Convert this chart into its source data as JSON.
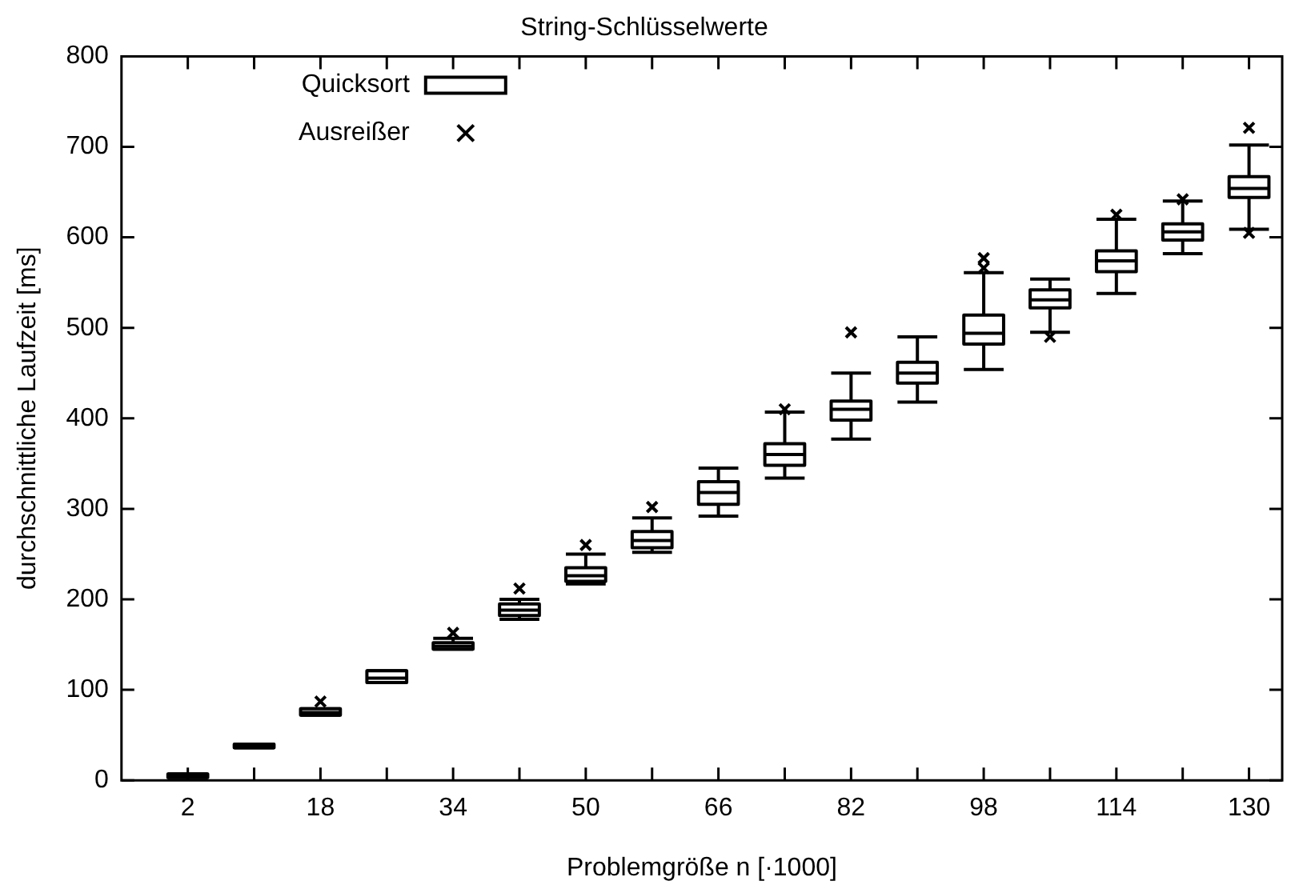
{
  "chart_data": {
    "type": "box",
    "title": "String-Schlüsselwerte",
    "xlabel": "Problemgröße n [·1000]",
    "ylabel": "durchschnittliche Laufzeit [ms]",
    "x": [
      2,
      10,
      18,
      26,
      34,
      42,
      50,
      58,
      66,
      74,
      82,
      90,
      98,
      106,
      114,
      122,
      130
    ],
    "xlim": [
      -6,
      134
    ],
    "xticks": [
      2,
      {
        "value": 10,
        "label": null
      },
      18,
      {
        "value": 26,
        "label": null
      },
      34,
      {
        "value": 42,
        "label": null
      },
      50,
      {
        "value": 58,
        "label": null
      },
      66,
      {
        "value": 74,
        "label": null
      },
      82,
      {
        "value": 90,
        "label": null
      },
      98,
      {
        "value": 106,
        "label": null
      },
      114,
      {
        "value": 122,
        "label": null
      },
      130
    ],
    "ylim": [
      0,
      800
    ],
    "yticks": [
      0,
      100,
      200,
      300,
      400,
      500,
      600,
      700,
      800
    ],
    "grid": false,
    "legend": "top left",
    "series": [
      {
        "name": "Quicksort",
        "type": "box",
        "color": "#000000",
        "boxes": [
          {
            "low": 3,
            "q1": 3,
            "median": 5,
            "q3": 7,
            "high": 7
          },
          {
            "low": 36,
            "q1": 36,
            "median": 38,
            "q3": 40,
            "high": 40
          },
          {
            "low": 72,
            "q1": 72,
            "median": 75,
            "q3": 79,
            "high": 79
          },
          {
            "low": 108,
            "q1": 108,
            "median": 113,
            "q3": 121,
            "high": 121
          },
          {
            "low": 145,
            "q1": 145,
            "median": 148,
            "q3": 152,
            "high": 157
          },
          {
            "low": 178,
            "q1": 182,
            "median": 188,
            "q3": 195,
            "high": 200
          },
          {
            "low": 217,
            "q1": 220,
            "median": 226,
            "q3": 235,
            "high": 250
          },
          {
            "low": 252,
            "q1": 257,
            "median": 265,
            "q3": 275,
            "high": 290
          },
          {
            "low": 292,
            "q1": 305,
            "median": 318,
            "q3": 330,
            "high": 345
          },
          {
            "low": 334,
            "q1": 348,
            "median": 360,
            "q3": 372,
            "high": 407
          },
          {
            "low": 377,
            "q1": 398,
            "median": 410,
            "q3": 419,
            "high": 450
          },
          {
            "low": 418,
            "q1": 439,
            "median": 450,
            "q3": 462,
            "high": 490
          },
          {
            "low": 454,
            "q1": 482,
            "median": 494,
            "q3": 514,
            "high": 561
          },
          {
            "low": 495,
            "q1": 522,
            "median": 531,
            "q3": 542,
            "high": 554
          },
          {
            "low": 538,
            "q1": 562,
            "median": 574,
            "q3": 585,
            "high": 620
          },
          {
            "low": 582,
            "q1": 597,
            "median": 606,
            "q3": 615,
            "high": 640
          },
          {
            "low": 609,
            "q1": 644,
            "median": 654,
            "q3": 667,
            "high": 702
          }
        ]
      },
      {
        "name": "Ausreißer",
        "type": "scatter",
        "marker": "cross",
        "color": "#000000",
        "x": [
          18,
          34,
          42,
          50,
          58,
          74,
          82,
          98,
          98,
          106,
          114,
          122,
          130,
          130
        ],
        "values": [
          87,
          163,
          212,
          260,
          302,
          410,
          495,
          577,
          566,
          490,
          625,
          642,
          721,
          605
        ]
      }
    ]
  }
}
